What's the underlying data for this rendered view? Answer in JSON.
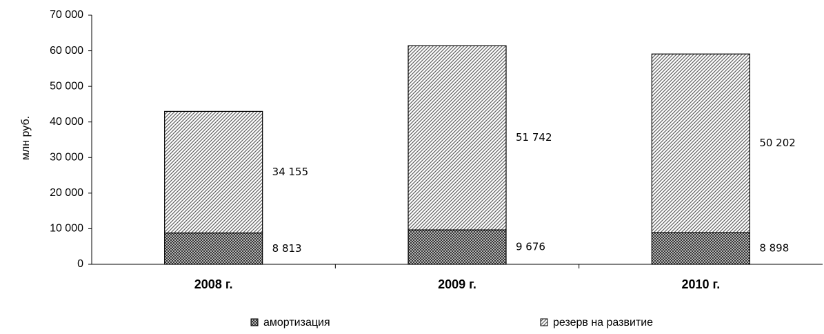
{
  "chart_data": {
    "type": "stacked-bar",
    "y_label": "млн руб.",
    "categories": [
      "2008 г.",
      "2009 г.",
      "2010 г."
    ],
    "series": [
      {
        "name": "амортизация",
        "color": "#333333",
        "values": [
          8813,
          9676,
          8898
        ],
        "value_labels": [
          "8 813",
          "9 676",
          "8 898"
        ]
      },
      {
        "name": "резерв на развитие",
        "color": "#666666",
        "values": [
          34155,
          51742,
          50202
        ],
        "value_labels": [
          "34 155",
          "51 742",
          "50 202"
        ]
      }
    ],
    "ylim": [
      0,
      70000
    ],
    "yticks": [
      0,
      {
        "value": 10000,
        "label": "10 000"
      },
      {
        "value": 20000,
        "label": "20 000"
      },
      {
        "value": 30000,
        "label": "30 000"
      },
      {
        "value": 40000,
        "label": "40 000"
      },
      {
        "value": 50000,
        "label": "50 000"
      },
      {
        "value": 60000,
        "label": "60 000"
      },
      {
        "value": 70000,
        "label": "70 000"
      }
    ],
    "grid": false
  }
}
